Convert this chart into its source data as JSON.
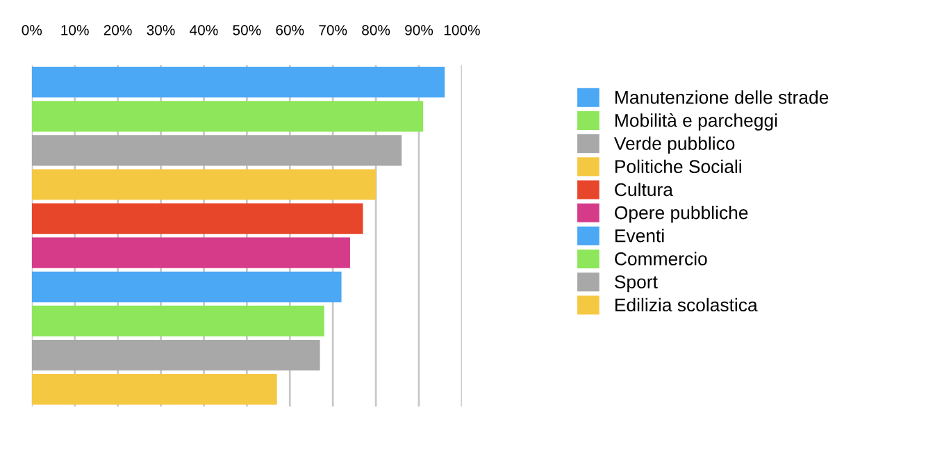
{
  "chart_data": {
    "type": "bar",
    "orientation": "horizontal",
    "categories": [
      null,
      null,
      null,
      null,
      null,
      null,
      null,
      null,
      null,
      null
    ],
    "series": [
      {
        "name": "Manutenzione delle strade",
        "color": "#4aa8f5",
        "values": [
          96,
          null,
          null,
          null,
          null,
          null,
          null,
          null,
          null,
          null
        ]
      },
      {
        "name": "Mobilità e parcheggi",
        "color": "#8ee65a",
        "values": [
          null,
          91,
          null,
          null,
          null,
          null,
          null,
          null,
          null,
          null
        ]
      },
      {
        "name": "Verde pubblico",
        "color": "#a8a8a8",
        "values": [
          null,
          null,
          86,
          null,
          null,
          null,
          null,
          null,
          null,
          null
        ]
      },
      {
        "name": "Politiche Sociali",
        "color": "#f5c842",
        "values": [
          null,
          null,
          null,
          80,
          null,
          null,
          null,
          null,
          null,
          null
        ]
      },
      {
        "name": "Cultura",
        "color": "#e8462a",
        "values": [
          null,
          null,
          null,
          null,
          77,
          null,
          null,
          null,
          null,
          null
        ]
      },
      {
        "name": "Opere pubbliche",
        "color": "#d63b8a",
        "values": [
          null,
          null,
          null,
          null,
          null,
          74,
          null,
          null,
          null,
          null
        ]
      },
      {
        "name": "Eventi",
        "color": "#4aa8f5",
        "values": [
          null,
          null,
          null,
          null,
          null,
          null,
          72,
          null,
          null,
          null
        ]
      },
      {
        "name": "Commercio",
        "color": "#8ee65a",
        "values": [
          null,
          null,
          null,
          null,
          null,
          null,
          null,
          68,
          null,
          null
        ]
      },
      {
        "name": "Sport",
        "color": "#a8a8a8",
        "values": [
          null,
          null,
          null,
          null,
          null,
          null,
          null,
          null,
          67,
          null
        ]
      },
      {
        "name": "Edilizia scolastica",
        "color": "#f5c842",
        "values": [
          null,
          null,
          null,
          null,
          null,
          null,
          null,
          null,
          null,
          57
        ]
      }
    ],
    "xlim": [
      0,
      100
    ],
    "xticks": [
      {
        "value": 0,
        "label": "0%"
      },
      {
        "value": 10,
        "label": "10%"
      },
      {
        "value": 20,
        "label": "20%"
      },
      {
        "value": 30,
        "label": "30%"
      },
      {
        "value": 40,
        "label": "40%"
      },
      {
        "value": 50,
        "label": "50%"
      },
      {
        "value": 60,
        "label": "60%"
      },
      {
        "value": 70,
        "label": "70%"
      },
      {
        "value": 80,
        "label": "80%"
      },
      {
        "value": 90,
        "label": "90%"
      },
      {
        "value": 100,
        "label": "100%"
      }
    ],
    "grid": "x",
    "legend": "right",
    "tick_labels": "x"
  }
}
